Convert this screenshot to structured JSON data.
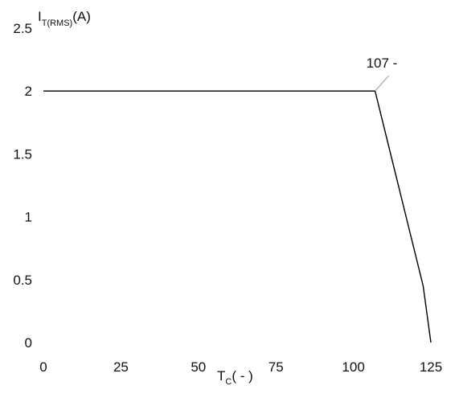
{
  "chart_data": {
    "type": "line",
    "title": "",
    "ylabel": {
      "main": "I",
      "sub": "T(RMS)",
      "unit": "(A)"
    },
    "xlabel": {
      "main": "T",
      "sub": "C",
      "unit": "( - )"
    },
    "xlim": [
      0,
      125
    ],
    "ylim": [
      0,
      2.5
    ],
    "x_ticks": [
      "0",
      "25",
      "50",
      "75",
      "100",
      "125"
    ],
    "y_ticks": [
      "0",
      "0.5",
      "1",
      "1.5",
      "2",
      "2.5"
    ],
    "grid": false,
    "series": [
      {
        "color": "#000000",
        "x": [
          0,
          107,
          119,
          122.5,
          125
        ],
        "y": [
          2,
          2,
          0.8,
          0.45,
          0
        ]
      }
    ],
    "annotations": [
      {
        "text": "107 -",
        "x": 107,
        "y": 2
      }
    ]
  }
}
